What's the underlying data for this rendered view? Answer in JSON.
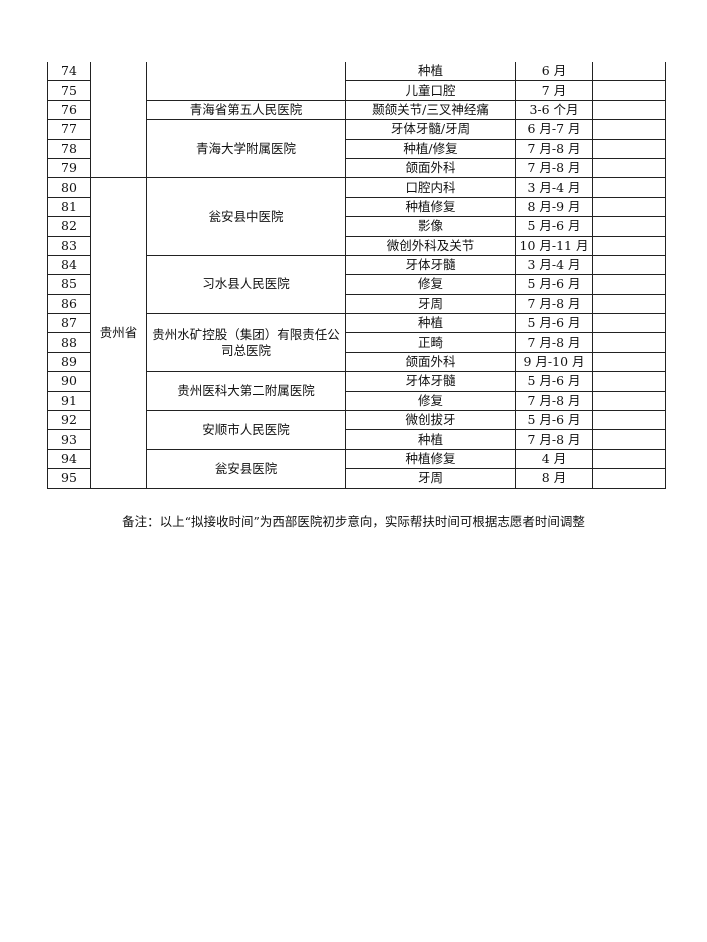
{
  "rows": [
    {
      "no": "74",
      "dept": "种植",
      "time": "6 月"
    },
    {
      "no": "75",
      "dept": "儿童口腔",
      "time": "7 月"
    },
    {
      "no": "76",
      "dept": "颞颌关节/三叉神经痛",
      "time": "3-6 个月"
    },
    {
      "no": "77",
      "dept": "牙体牙髓/牙周",
      "time": "6 月-7 月"
    },
    {
      "no": "78",
      "dept": "种植/修复",
      "time": "7 月-8 月"
    },
    {
      "no": "79",
      "dept": "颌面外科",
      "time": "7 月-8 月"
    },
    {
      "no": "80",
      "dept": "口腔内科",
      "time": "3 月-4 月"
    },
    {
      "no": "81",
      "dept": "种植修复",
      "time": "8 月-9 月"
    },
    {
      "no": "82",
      "dept": "影像",
      "time": "5 月-6 月"
    },
    {
      "no": "83",
      "dept": "微创外科及关节",
      "time": "10 月-11 月"
    },
    {
      "no": "84",
      "dept": "牙体牙髓",
      "time": "3 月-4 月"
    },
    {
      "no": "85",
      "dept": "修复",
      "time": "5 月-6 月"
    },
    {
      "no": "86",
      "dept": "牙周",
      "time": "7 月-8 月"
    },
    {
      "no": "87",
      "dept": "种植",
      "time": "5 月-6 月"
    },
    {
      "no": "88",
      "dept": "正畸",
      "time": "7 月-8 月"
    },
    {
      "no": "89",
      "dept": "颌面外科",
      "time": "9 月-10 月"
    },
    {
      "no": "90",
      "dept": "牙体牙髓",
      "time": "5 月-6 月"
    },
    {
      "no": "91",
      "dept": "修复",
      "time": "7 月-8 月"
    },
    {
      "no": "92",
      "dept": "微创拔牙",
      "time": "5 月-6 月"
    },
    {
      "no": "93",
      "dept": "种植",
      "time": "7 月-8 月"
    },
    {
      "no": "94",
      "dept": "种植修复",
      "time": "4 月"
    },
    {
      "no": "95",
      "dept": "牙周",
      "time": "8 月"
    }
  ],
  "provinces": {
    "guizhou": "贵州省"
  },
  "hospitals": {
    "qh5": "青海省第五人民医院",
    "qhdx": "青海大学附属医院",
    "wazy": "瓮安县中医院",
    "xs": "习水县人民医院",
    "sk": "贵州水矿控股（集团）有限责任公司总医院",
    "gy2": "贵州医科大第二附属医院",
    "as": "安顺市人民医院",
    "wa": "瓮安县医院"
  },
  "note": "备注：以上“拟接收时间”为西部医院初步意向，实际帮扶时间可根据志愿者时间调整"
}
